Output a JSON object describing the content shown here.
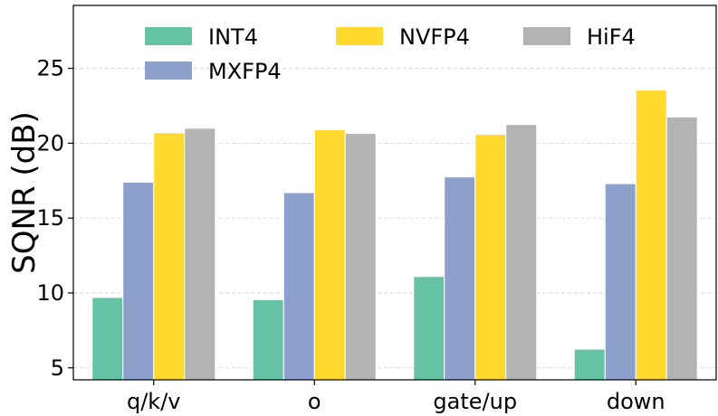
{
  "chart_data": {
    "type": "bar",
    "title": "",
    "xlabel": "",
    "ylabel": "SQNR (dB)",
    "ylim": [
      4.2,
      29.2
    ],
    "yticks": [
      5,
      10,
      15,
      20,
      25
    ],
    "grid": true,
    "legend_position": "top",
    "categories": [
      "q/k/v",
      "o",
      "gate/up",
      "down"
    ],
    "series": [
      {
        "name": "INT4",
        "color": "#66c2a5",
        "values": [
          9.7,
          9.55,
          11.1,
          6.25
        ]
      },
      {
        "name": "MXFP4",
        "color": "#8da0cb",
        "values": [
          17.4,
          16.7,
          17.75,
          17.3
        ]
      },
      {
        "name": "NVFP4",
        "color": "#ffd92f",
        "values": [
          20.7,
          20.9,
          20.6,
          23.55
        ]
      },
      {
        "name": "HiF4",
        "color": "#b3b3b3",
        "values": [
          21.0,
          20.65,
          21.25,
          21.75
        ]
      }
    ]
  }
}
